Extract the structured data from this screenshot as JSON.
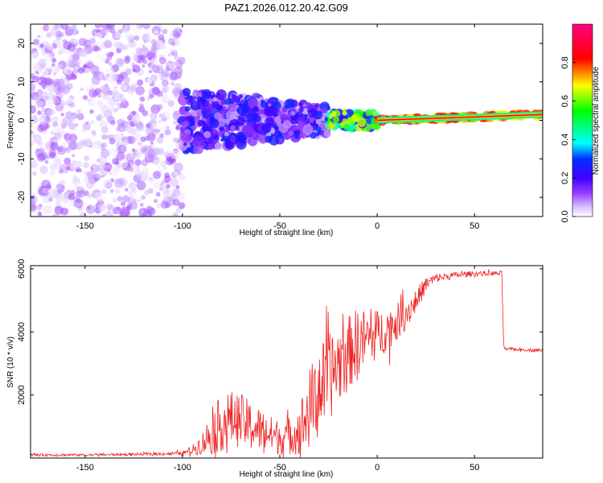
{
  "title": "PAZ1.2026.012.20.42.G09",
  "chart_data": [
    {
      "type": "heatmap",
      "name": "spectrogram",
      "xlabel": "Height of straight line (km)",
      "ylabel": "Frequency (Hz)",
      "xlim": [
        -178,
        85
      ],
      "ylim": [
        -25,
        25
      ],
      "xticks": [
        -150,
        -100,
        -50,
        0,
        50
      ],
      "xtick_labels": [
        "-150",
        "-100",
        "-50",
        "0",
        "50"
      ],
      "yticks": [
        20,
        10,
        0,
        -10,
        -20
      ],
      "ytick_labels": [
        "20",
        "10",
        "0",
        "-10",
        "-20"
      ],
      "colorbar": {
        "label": "Normalized spectral amplitude",
        "range": [
          0,
          1
        ],
        "ticks": [
          0.0,
          0.2,
          0.4,
          0.6,
          0.8
        ],
        "tick_labels": [
          "0.0",
          "0.2",
          "0.4",
          "0.6",
          "0.8"
        ],
        "colors": [
          "#ffffff",
          "#c8a8ff",
          "#7a00ff",
          "#0000ff",
          "#00ffff",
          "#00ff00",
          "#ffff00",
          "#ff0000",
          "#ff0080"
        ]
      },
      "regions": [
        {
          "x_range": [
            -178,
            -100
          ],
          "freq_spread": 25,
          "amplitude": [
            0.0,
            0.12
          ],
          "description": "noise"
        },
        {
          "x_range": [
            -100,
            -25
          ],
          "freq_spread": 8,
          "amplitude": [
            0.05,
            0.3
          ]
        },
        {
          "x_range": [
            -25,
            0
          ],
          "freq_spread": 2,
          "amplitude": [
            0.2,
            0.7
          ]
        },
        {
          "x_range": [
            0,
            85
          ],
          "freq_spread": 1,
          "amplitude": [
            0.6,
            0.9
          ],
          "center_freq": [
            0,
            1.5
          ]
        }
      ]
    },
    {
      "type": "line",
      "name": "snr",
      "xlabel": "Height of straight line (km)",
      "ylabel": "SNR (10 * v/v)",
      "xlim": [
        -178,
        85
      ],
      "ylim": [
        0,
        6100
      ],
      "xticks": [
        -150,
        -100,
        -50,
        0,
        50
      ],
      "xtick_labels": [
        "-150",
        "-100",
        "-50",
        "0",
        "50"
      ],
      "yticks": [
        2000,
        4000,
        6000
      ],
      "ytick_labels": [
        "2000",
        "4000",
        "6000"
      ],
      "color": "#ee2222",
      "series": [
        {
          "name": "SNR",
          "x": [
            -178,
            -150,
            -120,
            -100,
            -95,
            -90,
            -85,
            -80,
            -75,
            -70,
            -65,
            -60,
            -55,
            -50,
            -45,
            -40,
            -35,
            -30,
            -25,
            -20,
            -15,
            -10,
            -5,
            0,
            5,
            10,
            15,
            20,
            25,
            30,
            40,
            50,
            60,
            64,
            65,
            66,
            70,
            80,
            85
          ],
          "y": [
            100,
            100,
            120,
            150,
            250,
            450,
            800,
            1100,
            1250,
            1200,
            1000,
            900,
            750,
            650,
            700,
            900,
            1500,
            2200,
            2500,
            3000,
            3300,
            3700,
            3800,
            3900,
            4100,
            4300,
            4600,
            5000,
            5500,
            5700,
            5800,
            5850,
            5850,
            5850,
            3500,
            3450,
            3450,
            3420,
            3420
          ],
          "noise": [
            40,
            40,
            40,
            60,
            150,
            350,
            700,
            900,
            900,
            850,
            800,
            700,
            600,
            550,
            600,
            800,
            1300,
            1400,
            1400,
            1300,
            1200,
            1100,
            900,
            800,
            700,
            600,
            500,
            400,
            250,
            150,
            100,
            80,
            80,
            80,
            60,
            50,
            50,
            50,
            50
          ]
        }
      ]
    }
  ]
}
